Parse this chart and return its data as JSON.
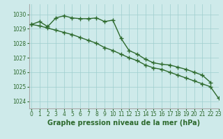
{
  "line1_x": [
    0,
    1,
    2,
    3,
    4,
    5,
    6,
    7,
    8,
    9,
    10,
    11,
    12,
    13,
    14,
    15,
    16,
    17,
    18,
    19,
    20,
    21,
    22
  ],
  "line1_y": [
    1029.3,
    1029.5,
    1029.15,
    1029.75,
    1029.9,
    1029.75,
    1029.7,
    1029.7,
    1029.75,
    1029.5,
    1029.6,
    1028.35,
    1027.5,
    1027.25,
    1026.9,
    1026.65,
    1026.55,
    1026.5,
    1026.35,
    1026.2,
    1026.0,
    1025.8,
    1025.3
  ],
  "line2_x": [
    0,
    1,
    2,
    3,
    4,
    5,
    6,
    7,
    8,
    9,
    10,
    11,
    12,
    13,
    14,
    15,
    16,
    17,
    18,
    19,
    20,
    21,
    22,
    23
  ],
  "line2_y": [
    1029.3,
    1029.2,
    1029.05,
    1028.9,
    1028.75,
    1028.6,
    1028.4,
    1028.2,
    1028.0,
    1027.7,
    1027.5,
    1027.25,
    1027.0,
    1026.8,
    1026.5,
    1026.3,
    1026.2,
    1026.0,
    1025.8,
    1025.6,
    1025.4,
    1025.2,
    1025.0,
    1024.2
  ],
  "line_color": "#2d6a2d",
  "bg_color": "#ceeaea",
  "grid_color": "#9ecece",
  "xlabel": "Graphe pression niveau de la mer (hPa)",
  "ylim": [
    1023.5,
    1030.7
  ],
  "xlim": [
    -0.3,
    23
  ],
  "yticks": [
    1024,
    1025,
    1026,
    1027,
    1028,
    1029,
    1030
  ],
  "xticks": [
    0,
    1,
    2,
    3,
    4,
    5,
    6,
    7,
    8,
    9,
    10,
    11,
    12,
    13,
    14,
    15,
    16,
    17,
    18,
    19,
    20,
    21,
    22,
    23
  ],
  "marker": "+",
  "marker_size": 5,
  "line_width": 1.0,
  "xlabel_fontsize": 7,
  "tick_fontsize": 5.5
}
